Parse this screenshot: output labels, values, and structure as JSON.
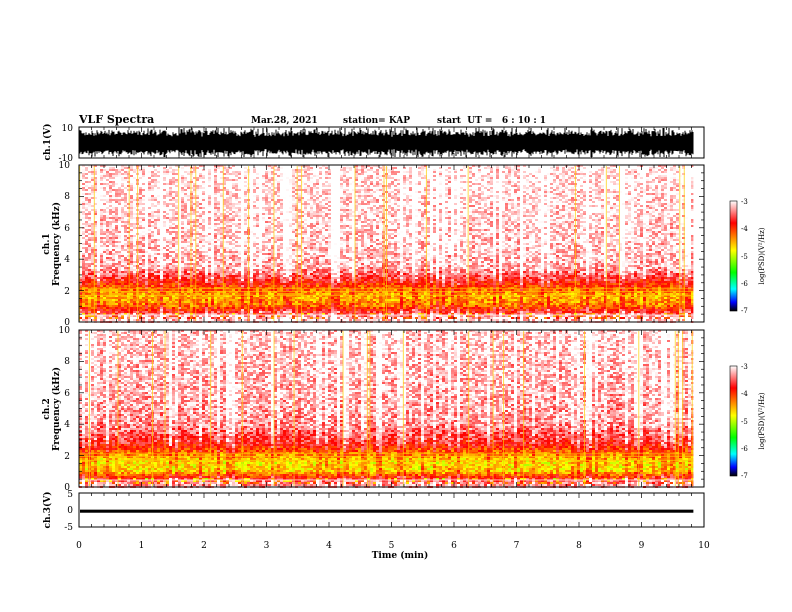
{
  "header": {
    "title": "VLF Spectra",
    "date": "Mar.28, 2021",
    "station": "station= KAP",
    "start": "start  UT =   6 : 10 : 1"
  },
  "chart_data": [
    {
      "type": "line",
      "id": "ch1-waveform",
      "ylabel": "ch.1(V)",
      "ylim": [
        -10,
        10
      ],
      "yticks": [
        "10",
        "-10"
      ],
      "xlim": [
        0,
        10
      ],
      "data_end_min": 9.83,
      "fill_color": "#000000"
    },
    {
      "type": "heatmap",
      "id": "ch1-spectrogram",
      "ylabel_top": "ch.1",
      "ylabel": "Frequency (kHz)",
      "ylim": [
        0,
        10
      ],
      "yticks": [
        "0",
        "2",
        "4",
        "6",
        "8",
        "10"
      ],
      "xlim": [
        0,
        10
      ],
      "data_end_min": 9.83,
      "profile": [
        {
          "f": 0.3,
          "level": -3.2
        },
        {
          "f": 1.0,
          "level": -4.3
        },
        {
          "f": 1.6,
          "level": -4.6
        },
        {
          "f": 2.2,
          "level": -4.2
        },
        {
          "f": 2.8,
          "level": -3.7
        },
        {
          "f": 3.5,
          "level": -3.3
        },
        {
          "f": 5.0,
          "level": -3.2
        },
        {
          "f": 10.0,
          "level": -3.1
        }
      ]
    },
    {
      "type": "heatmap",
      "id": "ch2-spectrogram",
      "ylabel_top": "ch.2",
      "ylabel": "Frequency (kHz)",
      "ylim": [
        0,
        10
      ],
      "yticks": [
        "0",
        "2",
        "4",
        "6",
        "8",
        "10"
      ],
      "xlim": [
        0,
        10
      ],
      "data_end_min": 9.83,
      "profile": [
        {
          "f": 0.3,
          "level": -3.4
        },
        {
          "f": 1.0,
          "level": -4.7
        },
        {
          "f": 1.6,
          "level": -4.8
        },
        {
          "f": 2.2,
          "level": -4.3
        },
        {
          "f": 2.8,
          "level": -3.8
        },
        {
          "f": 4.0,
          "level": -3.4
        },
        {
          "f": 6.0,
          "level": -3.3
        },
        {
          "f": 10.0,
          "level": -3.2
        }
      ]
    },
    {
      "type": "line",
      "id": "ch3-waveform",
      "ylabel": "ch.3(V)",
      "ylim": [
        -5,
        5
      ],
      "yticks": [
        "5",
        "0",
        "-5"
      ],
      "xlim": [
        0,
        10
      ],
      "data_end_min": 9.83,
      "band": [
        -0.8,
        0.1
      ],
      "fill_color": "#000000"
    }
  ],
  "xaxis": {
    "label": "Time (min)",
    "ticks": [
      "0",
      "1",
      "2",
      "3",
      "4",
      "5",
      "6",
      "7",
      "8",
      "9",
      "10"
    ]
  },
  "colorbar": {
    "label": "log(PSD)(V²/Hz)",
    "range": [
      -7,
      -3
    ],
    "ticks": [
      "-3",
      "-4",
      "-5",
      "-6",
      "-7"
    ],
    "stops": [
      "#ffffff",
      "#ff0000",
      "#ffff00",
      "#00ff00",
      "#00ffff",
      "#0000ff",
      "#000000"
    ]
  }
}
